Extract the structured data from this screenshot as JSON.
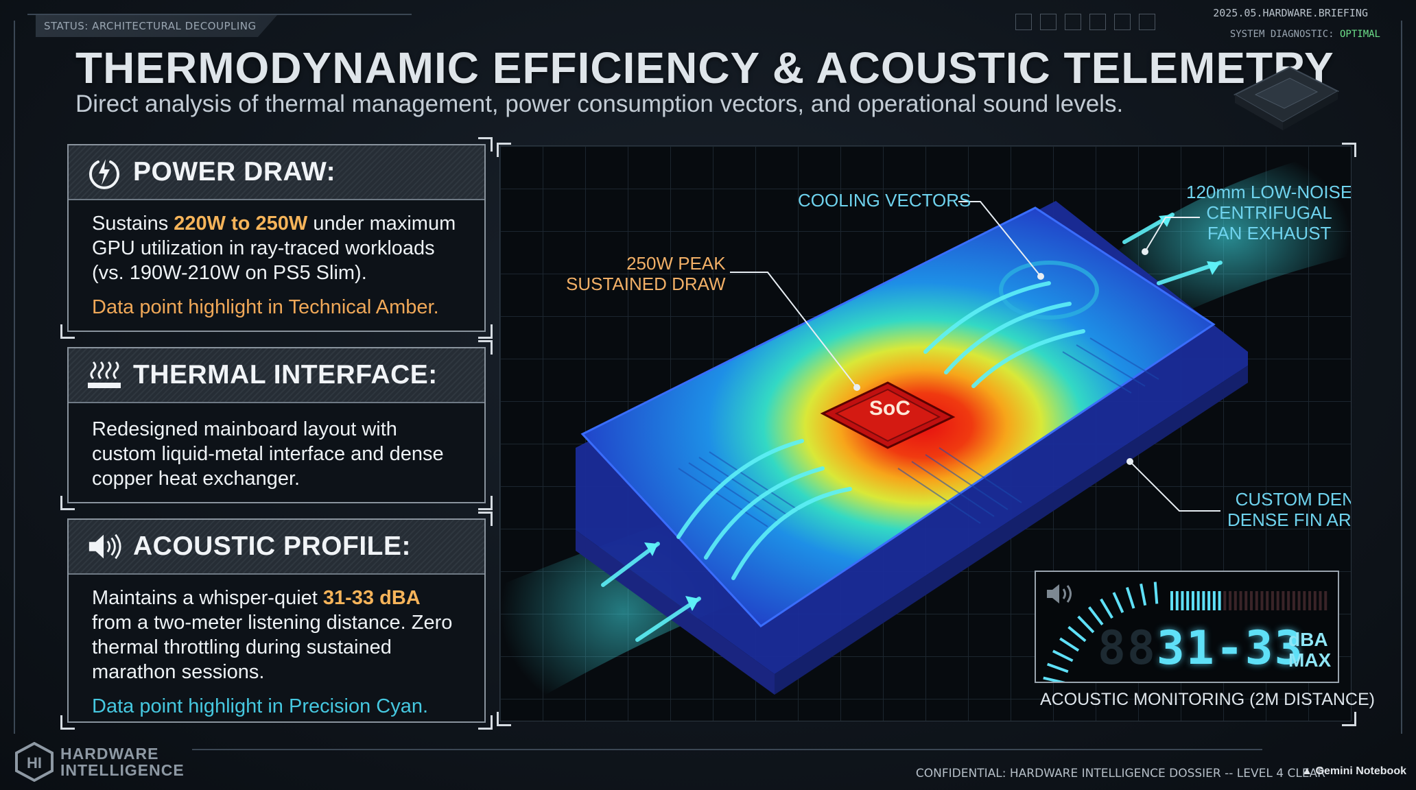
{
  "header": {
    "status_tab": "STATUS: ARCHITECTURAL DECOUPLING ACTIVE",
    "doc_id": "2025.05.HARDWARE.BRIEFING",
    "diagnostic_label": "SYSTEM DIAGNOSTIC:",
    "diagnostic_value": "OPTIMAL",
    "title": "THERMODYNAMIC EFFICIENCY & ACOUSTIC TELEMETRY",
    "subtitle": "Direct analysis of thermal management, power consumption vectors, and operational sound levels."
  },
  "cards": {
    "power": {
      "icon": "power-bolt-icon",
      "heading": "POWER DRAW:",
      "text_before": "Sustains ",
      "highlight": "220W to 250W",
      "text_after": " under maximum GPU utilization in ray-traced workloads (vs. 190W-210W on PS5 Slim).",
      "note": "Data point highlight in Technical Amber."
    },
    "thermal": {
      "icon": "heat-icon",
      "heading": "THERMAL INTERFACE:",
      "text": "Redesigned mainboard layout with custom liquid-metal interface and dense copper heat exchanger."
    },
    "acoustic": {
      "icon": "speaker-icon",
      "heading": "ACOUSTIC PROFILE:",
      "text_before": "Maintains a whisper-quiet ",
      "highlight": "31-33 dBA",
      "text_after": " from a two-meter listening distance. Zero thermal throttling during sustained marathon sessions.",
      "note": "Data point highlight in Precision Cyan."
    }
  },
  "diagram": {
    "chip_label": "SoC",
    "callouts": {
      "cooling": "COOLING VECTORS",
      "peak_line1": "250W PEAK",
      "peak_line2": "SUSTAINED DRAW",
      "fan_line1": "120mm LOW-NOISE",
      "fan_line2": "CENTRIFUGAL",
      "fan_line3": "FAN EXHAUST",
      "fin_line1": "CUSTOM DENSE",
      "fin_line2": "DENSE FIN ARRAY"
    }
  },
  "meter": {
    "value": "31-33",
    "ghost": "88",
    "unit": "dBA",
    "unit2": "MAX",
    "label": "ACOUSTIC MONITORING (2M DISTANCE)",
    "level_fraction": 0.55,
    "accent": "#5fe0f7"
  },
  "footer": {
    "logo_line1": "HARDWARE",
    "logo_line2": "INTELLIGENCE",
    "confidential": "CONFIDENTIAL: HARDWARE INTELLIGENCE DOSSIER -- LEVEL 4 CLEAR",
    "brand": "Gemini Notebook"
  },
  "colors": {
    "amber": "#f6b45a",
    "cyan": "#46d4ef",
    "optimal": "#6de08a"
  }
}
